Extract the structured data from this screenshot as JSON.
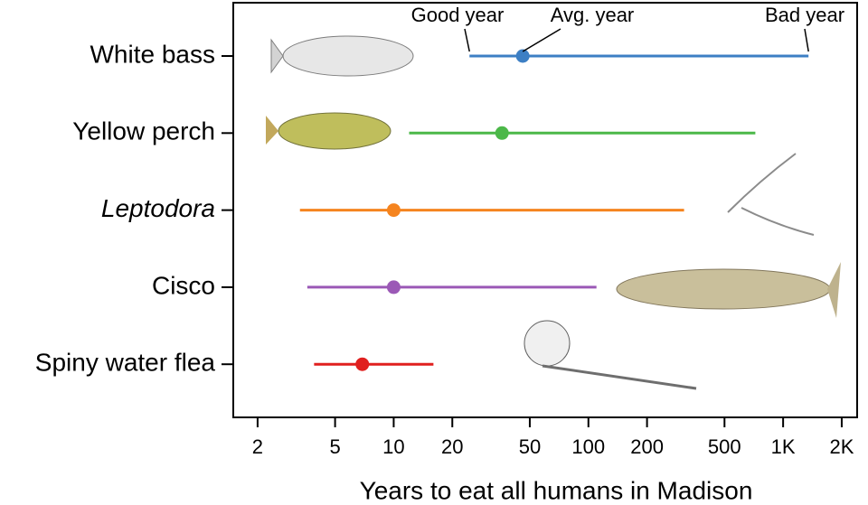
{
  "chart_data": {
    "type": "range-dot",
    "xlabel": "Years to eat all humans in Madison",
    "categories": [
      "White bass",
      "Yellow perch",
      "Leptodora",
      "Cisco",
      "Spiny water flea"
    ],
    "low": [
      24.5,
      12,
      3.3,
      3.6,
      3.9
    ],
    "values": [
      46,
      36,
      10,
      10,
      6.9
    ],
    "high": [
      1350,
      720,
      310,
      110,
      16
    ],
    "colors": [
      "#3d7fc4",
      "#4cb849",
      "#f5841f",
      "#9b59b6",
      "#e0201f"
    ],
    "annotations": [
      "Good year",
      "Avg. year",
      "Bad year"
    ],
    "log_x": true,
    "xlim": [
      1.5,
      2400
    ],
    "xticks": [
      2,
      5,
      10,
      20,
      50,
      100,
      200,
      500,
      {
        "value": 1000,
        "label": "1K"
      },
      {
        "value": 2000,
        "label": "2K"
      }
    ]
  }
}
